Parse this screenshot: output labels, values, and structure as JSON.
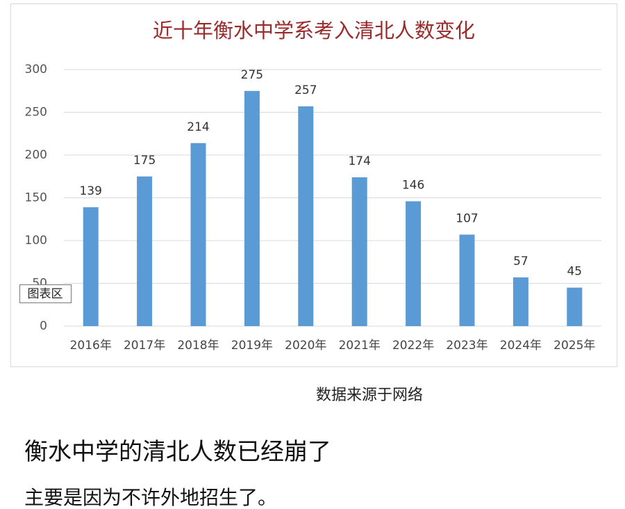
{
  "chart_data": {
    "type": "bar",
    "title": "近十年衡水中学系考入清北人数变化",
    "categories": [
      "2016年",
      "2017年",
      "2018年",
      "2019年",
      "2020年",
      "2021年",
      "2022年",
      "2023年",
      "2024年",
      "2025年"
    ],
    "values": [
      139,
      175,
      214,
      275,
      257,
      174,
      146,
      107,
      57,
      45
    ],
    "color": "#5b9bd5",
    "ylim": [
      0,
      300
    ],
    "yticks": [
      0,
      50,
      100,
      150,
      200,
      250,
      300
    ],
    "grid": true,
    "tooltip": "图表区"
  },
  "source": "数据来源于网络",
  "post": {
    "headline": "衡水中学的清北人数已经崩了",
    "body": "主要是因为不许外地招生了。"
  }
}
